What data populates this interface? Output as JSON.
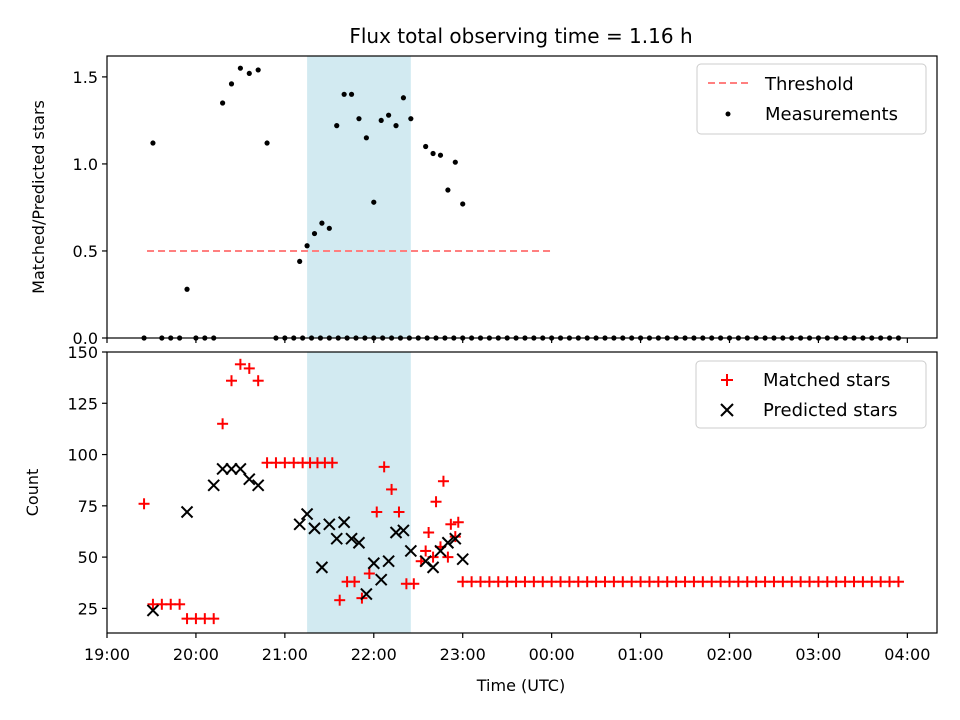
{
  "colors": {
    "threshold": "#ff7f7f",
    "measurement": "#000000",
    "matched": "#ff0000",
    "predicted": "#000000",
    "highlight": "#add8e6"
  },
  "chart_data": [
    {
      "type": "scatter",
      "title": "Flux total observing time = 1.16 h",
      "xlabel": "",
      "ylabel": "Matched/Predicted stars",
      "ylim": [
        0,
        1.62
      ],
      "xlim": [
        "19:00",
        "04:20"
      ],
      "x_tick_labels": [],
      "y_ticks": [
        "0.0",
        "0.5",
        "1.0",
        "1.5"
      ],
      "y_tick_values": [
        0,
        0.5,
        1.0,
        1.5
      ],
      "highlight_span": [
        "21:15",
        "22:25"
      ],
      "legend": {
        "position": "top-right",
        "entries": [
          "Threshold",
          "Measurements"
        ]
      },
      "threshold": {
        "name": "Threshold",
        "value": 0.5,
        "x_range": [
          "19:27",
          "23:59"
        ]
      },
      "series": [
        {
          "name": "Measurements",
          "x": [
            "19:25",
            "19:31",
            "19:37",
            "19:43",
            "19:49",
            "19:54",
            "20:00",
            "20:06",
            "20:12",
            "20:18",
            "20:24",
            "20:30",
            "20:36",
            "20:42",
            "20:48",
            "20:54",
            "21:00",
            "21:06",
            "21:12",
            "21:18",
            "21:24",
            "21:30",
            "21:36",
            "21:42",
            "21:48",
            "21:54",
            "22:00",
            "22:06",
            "22:12",
            "22:18",
            "22:24",
            "22:30",
            "22:36",
            "22:42",
            "22:48",
            "22:54",
            "23:00",
            "23:06",
            "23:12",
            "23:18",
            "23:24",
            "23:30",
            "23:36",
            "23:42",
            "23:48",
            "23:54",
            "00:00",
            "00:06",
            "00:12",
            "00:18",
            "00:24",
            "00:30",
            "00:36",
            "00:42",
            "00:48",
            "00:54",
            "01:00",
            "01:06",
            "01:12",
            "01:18",
            "01:24",
            "01:30",
            "01:36",
            "01:42",
            "01:48",
            "01:54",
            "02:00",
            "02:06",
            "02:12",
            "02:18",
            "02:24",
            "02:30",
            "02:36",
            "02:42",
            "02:48",
            "02:54",
            "03:00",
            "03:06",
            "03:12",
            "03:18",
            "03:24",
            "03:30",
            "03:36",
            "03:42",
            "03:48",
            "03:54"
          ],
          "y": [
            0.0,
            1.12,
            0.0,
            0.0,
            0.0,
            0.28,
            0.0,
            0.0,
            0.0,
            1.35,
            1.46,
            1.55,
            1.52,
            1.54,
            1.12,
            0.0,
            0.0,
            0.0,
            0.0,
            0.0,
            0.0,
            0.0,
            0.0,
            0.0,
            0.0,
            0.0,
            0.0,
            0.0,
            0.0,
            0.0,
            0.0,
            0.0,
            0.0,
            0.0,
            0.0,
            0.0,
            0.0,
            0.0,
            0.0,
            0.0,
            0.0,
            0.0,
            0.0,
            0.0,
            0.0,
            0.0,
            0.0,
            0.0,
            0.0,
            0.0,
            0.0,
            0.0,
            0.0,
            0.0,
            0.0,
            0.0,
            0.0,
            0.0,
            0.0,
            0.0,
            0.0,
            0.0,
            0.0,
            0.0,
            0.0,
            0.0,
            0.0,
            0.0,
            0.0,
            0.0,
            0.0,
            0.0,
            0.0,
            0.0,
            0.0,
            0.0,
            0.0,
            0.0,
            0.0,
            0.0,
            0.0,
            0.0,
            0.0,
            0.0,
            0.0,
            0.0
          ]
        },
        {
          "name": "Measurements",
          "x": [
            "21:10",
            "21:15",
            "21:20",
            "21:25",
            "21:30",
            "21:35",
            "21:40",
            "21:45",
            "21:50",
            "21:55",
            "22:00",
            "22:05",
            "22:10",
            "22:15",
            "22:20",
            "22:25",
            "22:35",
            "22:40",
            "22:45",
            "22:50",
            "22:55",
            "23:00"
          ],
          "y": [
            0.44,
            0.53,
            0.6,
            0.66,
            0.63,
            1.22,
            1.4,
            1.4,
            1.26,
            1.15,
            0.78,
            1.25,
            1.28,
            1.22,
            1.38,
            1.26,
            1.1,
            1.06,
            1.05,
            0.85,
            1.01,
            0.77
          ]
        }
      ]
    },
    {
      "type": "scatter",
      "title": "",
      "xlabel": "Time (UTC)",
      "ylabel": "Count",
      "ylim": [
        13,
        150
      ],
      "xlim": [
        "19:00",
        "04:20"
      ],
      "x_tick_labels": [
        "19:00",
        "20:00",
        "21:00",
        "22:00",
        "23:00",
        "00:00",
        "01:00",
        "02:00",
        "03:00",
        "04:00"
      ],
      "y_ticks": [
        "25",
        "50",
        "75",
        "100",
        "125",
        "150"
      ],
      "y_tick_values": [
        25,
        50,
        75,
        100,
        125,
        150
      ],
      "highlight_span": [
        "21:15",
        "22:25"
      ],
      "legend": {
        "position": "top-right",
        "entries": [
          "Matched stars",
          "Predicted stars"
        ]
      },
      "series": [
        {
          "name": "Matched stars",
          "x": [
            "19:25",
            "19:31",
            "19:37",
            "19:43",
            "19:49",
            "19:54",
            "20:00",
            "20:06",
            "20:12",
            "20:18",
            "20:24",
            "20:30",
            "20:36",
            "20:42",
            "20:48",
            "20:54",
            "21:00",
            "21:06",
            "21:12",
            "21:17",
            "21:22",
            "21:27",
            "21:32",
            "21:37",
            "21:42",
            "21:47",
            "21:52",
            "21:57",
            "22:02",
            "22:07",
            "22:12",
            "22:17",
            "22:22",
            "22:27",
            "22:32",
            "22:37",
            "22:42",
            "22:47",
            "22:52",
            "22:57"
          ],
          "y": [
            76,
            27,
            27,
            27,
            27,
            20,
            20,
            20,
            20,
            115,
            136,
            144,
            142,
            136,
            96,
            96,
            96,
            96,
            96,
            96,
            96,
            96,
            96,
            29,
            38,
            38,
            30,
            42,
            72,
            94,
            83,
            72,
            37,
            37,
            48,
            62,
            77,
            87,
            66,
            67
          ]
        },
        {
          "name": "Matched stars",
          "x": [
            "22:35",
            "22:40",
            "22:45",
            "22:50",
            "22:55",
            "23:00"
          ],
          "y": [
            53,
            50,
            55,
            50,
            60,
            38
          ]
        },
        {
          "name": "Matched stars",
          "x": [
            "23:06",
            "23:12",
            "23:18",
            "23:24",
            "23:30",
            "23:36",
            "23:42",
            "23:48",
            "23:54",
            "00:00",
            "00:06",
            "00:12",
            "00:18",
            "00:24",
            "00:30",
            "00:36",
            "00:42",
            "00:48",
            "00:54",
            "01:00",
            "01:06",
            "01:12",
            "01:18",
            "01:24",
            "01:30",
            "01:36",
            "01:42",
            "01:48",
            "01:54",
            "02:00",
            "02:06",
            "02:12",
            "02:18",
            "02:24",
            "02:30",
            "02:36",
            "02:42",
            "02:48",
            "02:54",
            "03:00",
            "03:06",
            "03:12",
            "03:18",
            "03:24",
            "03:30",
            "03:36",
            "03:42",
            "03:48",
            "03:54"
          ],
          "y": [
            38,
            38,
            38,
            38,
            38,
            38,
            38,
            38,
            38,
            38,
            38,
            38,
            38,
            38,
            38,
            38,
            38,
            38,
            38,
            38,
            38,
            38,
            38,
            38,
            38,
            38,
            38,
            38,
            38,
            38,
            38,
            38,
            38,
            38,
            38,
            38,
            38,
            38,
            38,
            38,
            38,
            38,
            38,
            38,
            38,
            38,
            38,
            38,
            38
          ]
        },
        {
          "name": "Predicted stars",
          "x": [
            "19:31",
            "19:54",
            "20:12",
            "20:18",
            "20:24",
            "20:30",
            "20:36",
            "20:42",
            "21:10",
            "21:15",
            "21:20",
            "21:25",
            "21:30",
            "21:35",
            "21:40",
            "21:45",
            "21:50",
            "21:55",
            "22:00",
            "22:05",
            "22:10",
            "22:15",
            "22:20",
            "22:25",
            "22:35",
            "22:40",
            "22:45",
            "22:50",
            "22:55",
            "23:00"
          ],
          "y": [
            24,
            72,
            85,
            93,
            93,
            93,
            88,
            85,
            66,
            71,
            64,
            45,
            66,
            59,
            67,
            59,
            57,
            32,
            47,
            39,
            48,
            62,
            63,
            53,
            48,
            45,
            53,
            57,
            59,
            49
          ]
        }
      ]
    }
  ]
}
